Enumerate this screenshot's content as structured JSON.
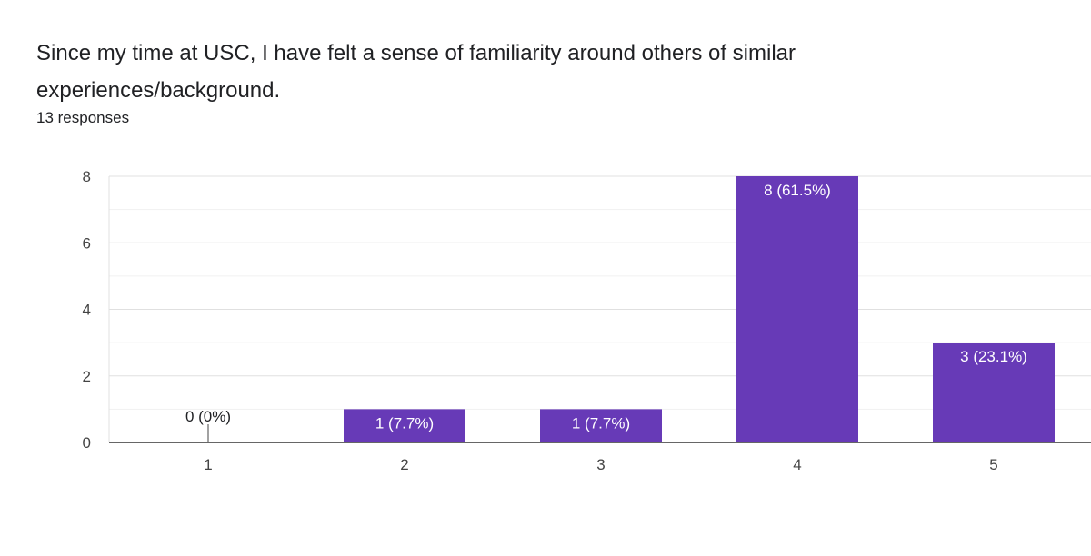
{
  "question": {
    "title": "Since my time at USC, I have felt a sense of familiarity around others of similar experiences/background.",
    "response_count": "13 responses"
  },
  "colors": {
    "bar": "#673ab7",
    "bar_label_inside": "#ffffff",
    "bar_label_outside": "#202124",
    "grid_major": "#e0e0e0",
    "grid_minor": "#f1f1f1",
    "axis": "#333333",
    "tick_text": "#444444"
  },
  "chart_data": {
    "type": "bar",
    "categories": [
      "1",
      "2",
      "3",
      "4",
      "5"
    ],
    "values": [
      0,
      1,
      1,
      8,
      3
    ],
    "data_labels": [
      "0 (0%)",
      "1 (7.7%)",
      "1 (7.7%)",
      "8 (61.5%)",
      "3 (23.1%)"
    ],
    "yticks": [
      0,
      2,
      4,
      6,
      8
    ],
    "ylim": [
      0,
      8
    ],
    "grid": true,
    "legend": "none",
    "title": "",
    "xlabel": "",
    "ylabel": ""
  }
}
